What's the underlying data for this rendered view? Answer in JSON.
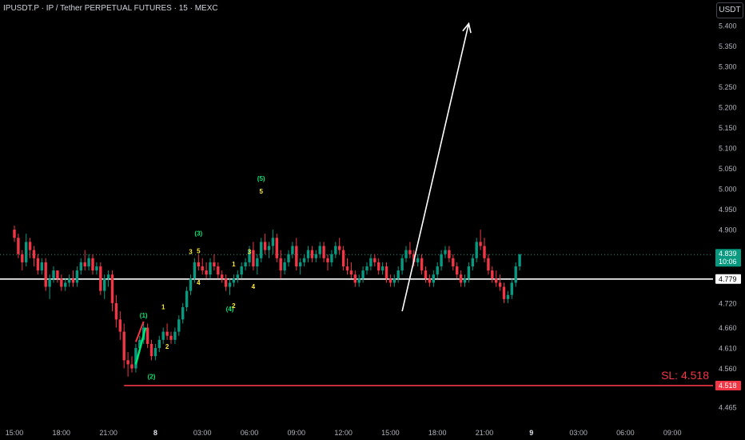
{
  "header": {
    "title": "IPUSDT.P · IP / Tether PERPETUAL FUTURES · 15 · MEXC",
    "currency_button": "USDT"
  },
  "colors": {
    "up": "#089981",
    "down": "#f23645",
    "background": "#000000",
    "axis_text": "#b2b5be",
    "wave_green": "#00e676",
    "wave_yellow": "#ffeb3b",
    "arrow": "#ffffff",
    "stop_loss": "#f23645",
    "marker_line": "#ffffff"
  },
  "chart_data": {
    "type": "candlestick",
    "y_axis": {
      "min": 4.43,
      "max": 5.43,
      "ticks": [
        "5.400",
        "5.350",
        "5.300",
        "5.250",
        "5.200",
        "5.150",
        "5.100",
        "5.050",
        "5.000",
        "4.950",
        "4.900",
        "4.720",
        "4.660",
        "4.610",
        "4.560",
        "4.465"
      ]
    },
    "x_axis": {
      "ticks": [
        {
          "label": "15:00",
          "bar": 0
        },
        {
          "label": "18:00",
          "bar": 12
        },
        {
          "label": "21:00",
          "bar": 24
        },
        {
          "label": "8",
          "bar": 36,
          "bold": true
        },
        {
          "label": "03:00",
          "bar": 48
        },
        {
          "label": "06:00",
          "bar": 60
        },
        {
          "label": "09:00",
          "bar": 72
        },
        {
          "label": "12:00",
          "bar": 84
        },
        {
          "label": "15:00",
          "bar": 96
        },
        {
          "label": "18:00",
          "bar": 108
        },
        {
          "label": "21:00",
          "bar": 120
        },
        {
          "label": "9",
          "bar": 132,
          "bold": true
        },
        {
          "label": "03:00",
          "bar": 144
        },
        {
          "label": "06:00",
          "bar": 156
        },
        {
          "label": "09:00",
          "bar": 168
        }
      ]
    },
    "candles": [
      [
        4.9,
        4.91,
        4.87,
        4.88
      ],
      [
        4.88,
        4.89,
        4.83,
        4.84
      ],
      [
        4.84,
        4.85,
        4.8,
        4.82
      ],
      [
        4.82,
        4.89,
        4.81,
        4.87
      ],
      [
        4.87,
        4.88,
        4.83,
        4.85
      ],
      [
        4.85,
        4.86,
        4.81,
        4.83
      ],
      [
        4.83,
        4.84,
        4.79,
        4.8
      ],
      [
        4.8,
        4.83,
        4.79,
        4.82
      ],
      [
        4.82,
        4.83,
        4.75,
        4.76
      ],
      [
        4.76,
        4.79,
        4.73,
        4.78
      ],
      [
        4.78,
        4.81,
        4.77,
        4.8
      ],
      [
        4.8,
        4.8,
        4.77,
        4.78
      ],
      [
        4.78,
        4.79,
        4.75,
        4.76
      ],
      [
        4.76,
        4.78,
        4.75,
        4.77
      ],
      [
        4.77,
        4.79,
        4.76,
        4.78
      ],
      [
        4.78,
        4.8,
        4.76,
        4.77
      ],
      [
        4.77,
        4.81,
        4.76,
        4.8
      ],
      [
        4.8,
        4.83,
        4.79,
        4.82
      ],
      [
        4.82,
        4.85,
        4.8,
        4.81
      ],
      [
        4.81,
        4.84,
        4.8,
        4.83
      ],
      [
        4.83,
        4.84,
        4.79,
        4.8
      ],
      [
        4.8,
        4.82,
        4.79,
        4.81
      ],
      [
        4.81,
        4.82,
        4.74,
        4.75
      ],
      [
        4.75,
        4.79,
        4.73,
        4.78
      ],
      [
        4.78,
        4.8,
        4.76,
        4.79
      ],
      [
        4.79,
        4.8,
        4.7,
        4.72
      ],
      [
        4.72,
        4.74,
        4.66,
        4.68
      ],
      [
        4.68,
        4.7,
        4.63,
        4.65
      ],
      [
        4.65,
        4.67,
        4.56,
        4.58
      ],
      [
        4.58,
        4.6,
        4.54,
        4.57
      ],
      [
        4.57,
        4.59,
        4.55,
        4.56
      ],
      [
        4.56,
        4.62,
        4.55,
        4.61
      ],
      [
        4.61,
        4.64,
        4.6,
        4.63
      ],
      [
        4.63,
        4.67,
        4.62,
        4.66
      ],
      [
        4.66,
        4.67,
        4.61,
        4.62
      ],
      [
        4.62,
        4.63,
        4.58,
        4.59
      ],
      [
        4.59,
        4.62,
        4.58,
        4.61
      ],
      [
        4.61,
        4.64,
        4.6,
        4.63
      ],
      [
        4.63,
        4.66,
        4.62,
        4.65
      ],
      [
        4.65,
        4.67,
        4.63,
        4.64
      ],
      [
        4.64,
        4.65,
        4.62,
        4.63
      ],
      [
        4.63,
        4.66,
        4.62,
        4.65
      ],
      [
        4.65,
        4.69,
        4.64,
        4.68
      ],
      [
        4.68,
        4.72,
        4.67,
        4.71
      ],
      [
        4.71,
        4.76,
        4.7,
        4.75
      ],
      [
        4.75,
        4.79,
        4.74,
        4.78
      ],
      [
        4.78,
        4.83,
        4.77,
        4.82
      ],
      [
        4.82,
        4.84,
        4.8,
        4.81
      ],
      [
        4.81,
        4.83,
        4.79,
        4.8
      ],
      [
        4.8,
        4.82,
        4.78,
        4.79
      ],
      [
        4.79,
        4.83,
        4.78,
        4.82
      ],
      [
        4.82,
        4.84,
        4.8,
        4.81
      ],
      [
        4.81,
        4.82,
        4.78,
        4.79
      ],
      [
        4.79,
        4.8,
        4.77,
        4.78
      ],
      [
        4.78,
        4.79,
        4.75,
        4.76
      ],
      [
        4.76,
        4.78,
        4.74,
        4.77
      ],
      [
        4.77,
        4.79,
        4.76,
        4.78
      ],
      [
        4.78,
        4.8,
        4.77,
        4.79
      ],
      [
        4.79,
        4.82,
        4.78,
        4.81
      ],
      [
        4.81,
        4.83,
        4.8,
        4.82
      ],
      [
        4.82,
        4.86,
        4.81,
        4.85
      ],
      [
        4.85,
        4.87,
        4.8,
        4.81
      ],
      [
        4.81,
        4.84,
        4.79,
        4.83
      ],
      [
        4.83,
        4.88,
        4.82,
        4.87
      ],
      [
        4.87,
        4.89,
        4.84,
        4.85
      ],
      [
        4.85,
        4.87,
        4.83,
        4.86
      ],
      [
        4.86,
        4.9,
        4.84,
        4.88
      ],
      [
        4.88,
        4.89,
        4.82,
        4.83
      ],
      [
        4.83,
        4.85,
        4.78,
        4.8
      ],
      [
        4.8,
        4.83,
        4.79,
        4.82
      ],
      [
        4.82,
        4.85,
        4.81,
        4.84
      ],
      [
        4.84,
        4.87,
        4.83,
        4.86
      ],
      [
        4.86,
        4.88,
        4.8,
        4.81
      ],
      [
        4.81,
        4.83,
        4.79,
        4.82
      ],
      [
        4.82,
        4.84,
        4.81,
        4.83
      ],
      [
        4.83,
        4.86,
        4.82,
        4.85
      ],
      [
        4.85,
        4.86,
        4.82,
        4.83
      ],
      [
        4.83,
        4.85,
        4.82,
        4.84
      ],
      [
        4.84,
        4.87,
        4.83,
        4.86
      ],
      [
        4.86,
        4.87,
        4.82,
        4.83
      ],
      [
        4.83,
        4.84,
        4.8,
        4.82
      ],
      [
        4.82,
        4.85,
        4.81,
        4.84
      ],
      [
        4.84,
        4.87,
        4.83,
        4.86
      ],
      [
        4.86,
        4.88,
        4.84,
        4.85
      ],
      [
        4.85,
        4.86,
        4.8,
        4.81
      ],
      [
        4.81,
        4.83,
        4.79,
        4.8
      ],
      [
        4.8,
        4.82,
        4.78,
        4.79
      ],
      [
        4.79,
        4.8,
        4.76,
        4.77
      ],
      [
        4.77,
        4.79,
        4.76,
        4.78
      ],
      [
        4.78,
        4.81,
        4.77,
        4.8
      ],
      [
        4.8,
        4.82,
        4.79,
        4.81
      ],
      [
        4.81,
        4.84,
        4.8,
        4.83
      ],
      [
        4.83,
        4.84,
        4.81,
        4.82
      ],
      [
        4.82,
        4.83,
        4.79,
        4.8
      ],
      [
        4.8,
        4.82,
        4.79,
        4.81
      ],
      [
        4.81,
        4.82,
        4.77,
        4.78
      ],
      [
        4.78,
        4.79,
        4.76,
        4.77
      ],
      [
        4.77,
        4.79,
        4.76,
        4.78
      ],
      [
        4.78,
        4.81,
        4.77,
        4.8
      ],
      [
        4.8,
        4.84,
        4.79,
        4.83
      ],
      [
        4.83,
        4.86,
        4.82,
        4.85
      ],
      [
        4.85,
        4.87,
        4.83,
        4.84
      ],
      [
        4.84,
        4.85,
        4.81,
        4.82
      ],
      [
        4.82,
        4.84,
        4.81,
        4.83
      ],
      [
        4.83,
        4.84,
        4.79,
        4.8
      ],
      [
        4.8,
        4.81,
        4.77,
        4.78
      ],
      [
        4.78,
        4.79,
        4.76,
        4.77
      ],
      [
        4.77,
        4.8,
        4.76,
        4.79
      ],
      [
        4.79,
        4.82,
        4.78,
        4.81
      ],
      [
        4.81,
        4.85,
        4.8,
        4.84
      ],
      [
        4.84,
        4.86,
        4.83,
        4.85
      ],
      [
        4.85,
        4.86,
        4.82,
        4.83
      ],
      [
        4.83,
        4.84,
        4.8,
        4.81
      ],
      [
        4.81,
        4.82,
        4.78,
        4.79
      ],
      [
        4.79,
        4.8,
        4.76,
        4.77
      ],
      [
        4.77,
        4.79,
        4.76,
        4.78
      ],
      [
        4.78,
        4.82,
        4.77,
        4.81
      ],
      [
        4.81,
        4.84,
        4.8,
        4.83
      ],
      [
        4.83,
        4.88,
        4.82,
        4.87
      ],
      [
        4.87,
        4.9,
        4.85,
        4.86
      ],
      [
        4.86,
        4.88,
        4.82,
        4.83
      ],
      [
        4.83,
        4.84,
        4.79,
        4.8
      ],
      [
        4.8,
        4.81,
        4.77,
        4.78
      ],
      [
        4.78,
        4.8,
        4.76,
        4.77
      ],
      [
        4.77,
        4.79,
        4.75,
        4.76
      ],
      [
        4.76,
        4.77,
        4.72,
        4.73
      ],
      [
        4.73,
        4.75,
        4.72,
        4.74
      ],
      [
        4.74,
        4.78,
        4.73,
        4.77
      ],
      [
        4.77,
        4.82,
        4.76,
        4.81
      ],
      [
        4.81,
        4.84,
        4.8,
        4.84
      ]
    ],
    "horizontal_lines": [
      {
        "price": 4.779,
        "label": "4.779",
        "style": "solid",
        "color": "#ffffff"
      },
      {
        "price": 4.518,
        "label": "4.518",
        "style": "solid",
        "color": "#f23645",
        "start_bar": 28
      },
      {
        "price": 4.839,
        "label": "",
        "style": "dotted",
        "color": "#089981"
      }
    ],
    "price_tags": [
      {
        "price": 4.839,
        "label": "4.839",
        "sublabel": "10:06",
        "bg": "#089981",
        "fg": "#ffffff"
      },
      {
        "price": 4.779,
        "label": "4.779",
        "bg": "#ffffff",
        "fg": "#000000"
      },
      {
        "price": 4.518,
        "label": "4.518",
        "bg": "#f23645",
        "fg": "#ffffff"
      }
    ],
    "annotations": {
      "stop_loss_text": "SL: 4.518",
      "wave_labels": [
        {
          "text": "(1)",
          "bar": 33,
          "price": 4.685,
          "color": "green"
        },
        {
          "text": "(2)",
          "bar": 35,
          "price": 4.535,
          "color": "green"
        },
        {
          "text": "1",
          "bar": 38,
          "price": 4.705,
          "color": "yellow"
        },
        {
          "text": "2",
          "bar": 39,
          "price": 4.608,
          "color": "yellow"
        },
        {
          "text": "3",
          "bar": 45,
          "price": 4.84,
          "color": "yellow"
        },
        {
          "text": "(3)",
          "bar": 47,
          "price": 4.885,
          "color": "green"
        },
        {
          "text": "4",
          "bar": 47,
          "price": 4.765,
          "color": "yellow"
        },
        {
          "text": "5",
          "bar": 47,
          "price": 4.842,
          "color": "yellow"
        },
        {
          "text": "(4)",
          "bar": 55,
          "price": 4.7,
          "color": "green"
        },
        {
          "text": "2",
          "bar": 56,
          "price": 4.708,
          "color": "yellow"
        },
        {
          "text": "1",
          "bar": 56,
          "price": 4.81,
          "color": "yellow"
        },
        {
          "text": "3",
          "bar": 60,
          "price": 4.84,
          "color": "yellow"
        },
        {
          "text": "4",
          "bar": 61,
          "price": 4.755,
          "color": "yellow"
        },
        {
          "text": "(5)",
          "bar": 63,
          "price": 5.02,
          "color": "green"
        },
        {
          "text": "5",
          "bar": 63,
          "price": 4.988,
          "color": "yellow"
        }
      ],
      "trend_arrow": {
        "from_bar": 99,
        "from_price": 4.7,
        "to_bar": 116,
        "to_price": 5.405
      }
    }
  }
}
